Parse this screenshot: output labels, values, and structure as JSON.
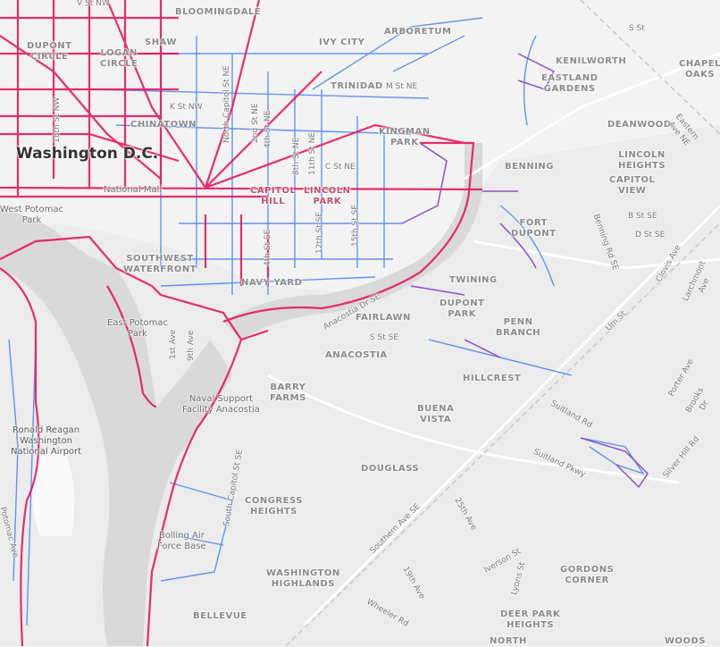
{
  "labels": [
    "Washington D.C.",
    "BLOOMINGDALE",
    "DUPONT\nCIRCLE",
    "LOGAN\nCIRCLE",
    "SHAW",
    "IVY CITY",
    "ARBORETUM",
    "KENILWORTH",
    "CHAPEL\nOAKS",
    "EASTLAND\nGARDENS",
    "TRINIDAD",
    "DEANWOOD",
    "CHINATOWN",
    "KINGMAN\nPARK",
    "BENNING",
    "LINCOLN\nHEIGHTS",
    "CAPITOL\nVIEW",
    "National Mall",
    "CAPITOL\nHILL",
    "LINCOLN\nPARK",
    "West Potomac\nPark",
    "FORT\nDUPONT",
    "SOUTHWEST\nWATERFRONT",
    "NAVY YARD",
    "TWINING",
    "DUPONT\nPARK",
    "FAIRLAWN",
    "PENN\nBRANCH",
    "East Potomac\nPark",
    "ANACOSTIA",
    "HILLCREST",
    "BARRY\nFARMS",
    "Naval Support\nFacility Anacostia",
    "BUENA\nVISTA",
    "Ronald Reagan\nWashington\nNational Airport",
    "DOUGLASS",
    "CONGRESS\nHEIGHTS",
    "Bolling Air\nForce Base",
    "WASHINGTON\nHIGHLANDS",
    "GORDONS\nCORNER",
    "BELLEVUE",
    "DEER PARK\nHEIGHTS",
    "NORTH",
    "WOODS",
    "V St NW",
    "K St NW",
    "18th St NW",
    "North Capitol St NE",
    "2nd St NE",
    "4th St NE",
    "8th St NE",
    "11th St NE",
    "M St NE",
    "C St NE",
    "12th St SE",
    "15th St SE",
    "4th St SE",
    "1st Ave",
    "9th Ave",
    "Eastern Ave NE",
    "S St",
    "B St SE",
    "D St SE",
    "Benning Rd SE",
    "Clovis Ave",
    "Larchmont Ave",
    "Um St",
    "S St SE",
    "Anacostia Dr SE",
    "Suitland Rd",
    "Suitland Pkwy",
    "Porter Ave",
    "Brooks Dr",
    "Silver Hill Rd",
    "South Capitol St SE",
    "Southern Ave SE",
    "25th Ave",
    "19th Ave",
    "Iverson St",
    "Lyons St",
    "Wheeler Rd",
    "Potomac Ave"
  ]
}
